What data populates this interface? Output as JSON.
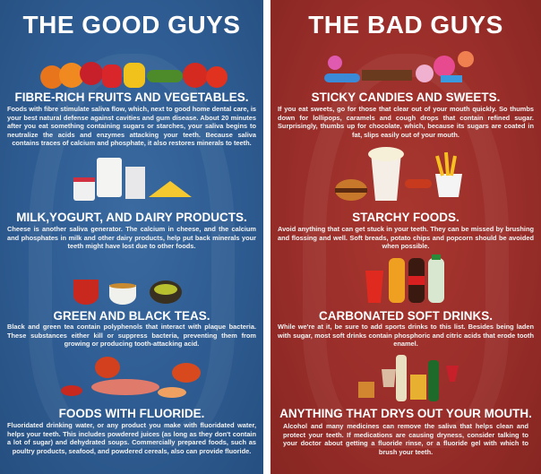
{
  "good": {
    "title": "THE GOOD GUYS",
    "sections": [
      {
        "heading": "FIBRE-RICH FRUITS AND VEGETABLES.",
        "body": "Foods with fibre stimulate saliva flow, which, next to good home dental care, is your best natural defense against cavities and gum disease. About 20 minutes after you eat something containing sugars or starches, your saliva begins to neutralize the acids and enzymes attacking your teeth. Because saliva contains traces of calcium and phosphate, it also restores minerals to teeth."
      },
      {
        "heading": "MILK,YOGURT, AND DAIRY PRODUCTS.",
        "body": "Cheese is another saliva generator. The calcium in cheese, and the calcium and phosphates in milk and other dairy products, help put back minerals your teeth might have lost due to other foods."
      },
      {
        "heading": "GREEN AND BLACK TEAS.",
        "body": "Black and green tea contain polyphenols that interact with plaque bacteria. These substances either kill or suppress bacteria, preventing them from growing or producing tooth-attacking acid."
      },
      {
        "heading": "FOODS WITH FLUORIDE.",
        "body": "Fluoridated drinking water, or any product you make with fluoridated water, helps your teeth. This includes powdered juices (as long as they don't contain a lot of sugar) and dehydrated soups. Commercially prepared foods, such as poultry products, seafood, and powdered cereals, also can provide fluoride."
      }
    ]
  },
  "bad": {
    "title": "THE BAD GUYS",
    "sections": [
      {
        "heading": "STICKY CANDIES AND SWEETS.",
        "body": "If you eat sweets, go for those that clear out of your mouth quickly. So thumbs down for lollipops, caramels and cough drops that contain refined sugar. Surprisingly, thumbs up for chocolate, which, because its sugars are coated in fat, slips easily out of your mouth."
      },
      {
        "heading": "STARCHY FOODS.",
        "body": "Avoid anything that can get stuck in your teeth.  They can be missed by brushing and flossing and well.  Soft breads, potato chips and popcorn should be avoided when possible."
      },
      {
        "heading": "CARBONATED SOFT DRINKS.",
        "body": "While we're at it, be sure to add sports drinks to this list.   Besides being laden with sugar, most soft drinks contain phosphoric and citric acids that erode tooth enamel."
      },
      {
        "heading": "ANYTHING THAT DRYS OUT YOUR MOUTH.",
        "body": "Alcohol and many medicines can remove the saliva that helps clean and protect your teeth. If medications are  causing dryness, consider talking to your doctor about getting a fluoride rinse, or a fluoride gel with which to brush your teeth."
      }
    ]
  },
  "colors": {
    "good_bg": "#2e5c92",
    "bad_bg": "#9a2e2a"
  }
}
